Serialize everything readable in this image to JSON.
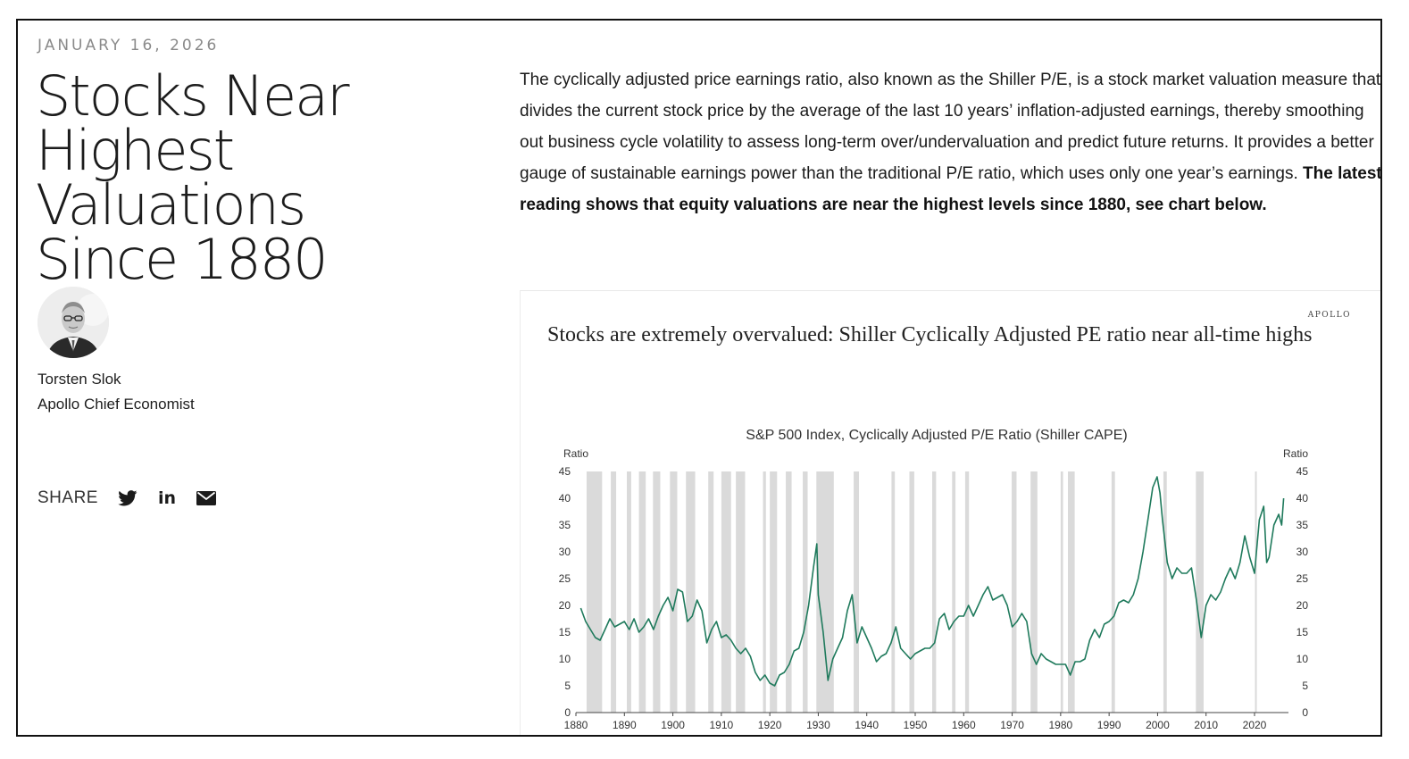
{
  "article": {
    "date": "JANUARY 16, 2026",
    "title_lines": [
      "Stocks Near",
      "Highest Valuations",
      "Since 1880"
    ],
    "author": {
      "name": "Torsten Slok",
      "role": "Apollo Chief Economist"
    },
    "share": {
      "label": "SHARE",
      "icons": [
        "twitter-icon",
        "linkedin-icon",
        "email-icon"
      ],
      "linkedin_glyph": "in"
    },
    "body_plain": "The cyclically adjusted price earnings ratio, also known as the Shiller P/E, is a stock market valuation measure that divides the current stock price by the average of the last 10 years’ inflation-adjusted earnings, thereby smoothing out business cycle volatility to assess long-term over/undervaluation and predict future returns. It provides a better gauge of sustainable earnings power than the traditional P/E ratio, which uses only one year’s earnings. ",
    "body_bold": "The latest reading shows that equity valuations are near the highest levels since 1880, see chart below."
  },
  "chart_card": {
    "brand": "APOLLO",
    "headline": "Stocks are extremely overvalued: Shiller Cyclically Adjusted PE ratio near all-time highs"
  },
  "chart_data": {
    "type": "line",
    "title": "S&P 500 Index, Cyclically Adjusted P/E Ratio (Shiller CAPE)",
    "ylabel_left": "Ratio",
    "ylabel_right": "Ratio",
    "xlim": [
      1880,
      2027
    ],
    "ylim": [
      0,
      45
    ],
    "x_ticks": [
      1880,
      1890,
      1900,
      1910,
      1920,
      1930,
      1940,
      1950,
      1960,
      1970,
      1980,
      1990,
      2000,
      2010,
      2020
    ],
    "y_ticks": [
      0,
      5,
      10,
      15,
      20,
      25,
      30,
      35,
      40,
      45
    ],
    "line_color": "#1f7a5c",
    "recession_color": "#dadada",
    "recessions": [
      [
        1882.2,
        1885.4
      ],
      [
        1887.2,
        1888.3
      ],
      [
        1890.5,
        1891.4
      ],
      [
        1893.0,
        1894.4
      ],
      [
        1895.9,
        1897.4
      ],
      [
        1899.4,
        1900.9
      ],
      [
        1902.7,
        1904.6
      ],
      [
        1907.3,
        1908.4
      ],
      [
        1910.0,
        1912.0
      ],
      [
        1913.0,
        1914.9
      ],
      [
        1918.6,
        1919.2
      ],
      [
        1920.0,
        1921.5
      ],
      [
        1923.3,
        1924.5
      ],
      [
        1926.8,
        1927.8
      ],
      [
        1929.6,
        1933.2
      ],
      [
        1937.3,
        1938.4
      ],
      [
        1945.1,
        1945.8
      ],
      [
        1948.8,
        1949.8
      ],
      [
        1953.5,
        1954.3
      ],
      [
        1957.6,
        1958.3
      ],
      [
        1960.3,
        1961.1
      ],
      [
        1969.9,
        1970.9
      ],
      [
        1973.8,
        1975.2
      ],
      [
        1980.0,
        1980.5
      ],
      [
        1981.5,
        1982.9
      ],
      [
        1990.5,
        1991.2
      ],
      [
        2001.2,
        2001.9
      ],
      [
        2007.9,
        2009.5
      ],
      [
        2020.1,
        2020.4
      ]
    ],
    "series": [
      {
        "points": [
          [
            1881,
            19.5
          ],
          [
            1882,
            17
          ],
          [
            1883,
            15.5
          ],
          [
            1884,
            14
          ],
          [
            1885,
            13.5
          ],
          [
            1886,
            15.5
          ],
          [
            1887,
            17.5
          ],
          [
            1888,
            16
          ],
          [
            1889,
            16.5
          ],
          [
            1890,
            17
          ],
          [
            1891,
            15.5
          ],
          [
            1892,
            17.5
          ],
          [
            1893,
            15
          ],
          [
            1894,
            16
          ],
          [
            1895,
            17.5
          ],
          [
            1896,
            15.5
          ],
          [
            1897,
            18
          ],
          [
            1898,
            20
          ],
          [
            1899,
            21.5
          ],
          [
            1900,
            19
          ],
          [
            1901,
            23
          ],
          [
            1902,
            22.5
          ],
          [
            1903,
            17
          ],
          [
            1904,
            18
          ],
          [
            1905,
            21
          ],
          [
            1906,
            19
          ],
          [
            1907,
            13
          ],
          [
            1908,
            15.5
          ],
          [
            1909,
            17
          ],
          [
            1910,
            14
          ],
          [
            1911,
            14.5
          ],
          [
            1912,
            13.5
          ],
          [
            1913,
            12
          ],
          [
            1914,
            11
          ],
          [
            1915,
            12
          ],
          [
            1916,
            10.5
          ],
          [
            1917,
            7.5
          ],
          [
            1918,
            6
          ],
          [
            1919,
            7
          ],
          [
            1920,
            5.5
          ],
          [
            1921,
            5
          ],
          [
            1922,
            7
          ],
          [
            1923,
            7.5
          ],
          [
            1924,
            9
          ],
          [
            1925,
            11.5
          ],
          [
            1926,
            12
          ],
          [
            1927,
            15
          ],
          [
            1928,
            20
          ],
          [
            1929,
            27
          ],
          [
            1929.7,
            31.5
          ],
          [
            1930,
            22
          ],
          [
            1931,
            15
          ],
          [
            1932,
            6
          ],
          [
            1933,
            10
          ],
          [
            1934,
            12
          ],
          [
            1935,
            14
          ],
          [
            1936,
            19
          ],
          [
            1937,
            22
          ],
          [
            1938,
            13
          ],
          [
            1939,
            16
          ],
          [
            1940,
            14
          ],
          [
            1941,
            12
          ],
          [
            1942,
            9.5
          ],
          [
            1943,
            10.5
          ],
          [
            1944,
            11
          ],
          [
            1945,
            13
          ],
          [
            1946,
            16
          ],
          [
            1947,
            12
          ],
          [
            1948,
            11
          ],
          [
            1949,
            10
          ],
          [
            1950,
            11
          ],
          [
            1951,
            11.5
          ],
          [
            1952,
            12
          ],
          [
            1953,
            12
          ],
          [
            1954,
            13
          ],
          [
            1955,
            17.5
          ],
          [
            1956,
            18.5
          ],
          [
            1957,
            15.5
          ],
          [
            1958,
            17
          ],
          [
            1959,
            18
          ],
          [
            1960,
            18
          ],
          [
            1961,
            20
          ],
          [
            1962,
            18
          ],
          [
            1963,
            20
          ],
          [
            1964,
            22
          ],
          [
            1965,
            23.5
          ],
          [
            1966,
            21
          ],
          [
            1967,
            21.5
          ],
          [
            1968,
            22
          ],
          [
            1969,
            20
          ],
          [
            1970,
            16
          ],
          [
            1971,
            17
          ],
          [
            1972,
            18.5
          ],
          [
            1973,
            17
          ],
          [
            1974,
            11
          ],
          [
            1975,
            9
          ],
          [
            1976,
            11
          ],
          [
            1977,
            10
          ],
          [
            1978,
            9.5
          ],
          [
            1979,
            9
          ],
          [
            1980,
            9
          ],
          [
            1981,
            9
          ],
          [
            1982,
            7
          ],
          [
            1983,
            9.5
          ],
          [
            1984,
            9.5
          ],
          [
            1985,
            10
          ],
          [
            1986,
            13.5
          ],
          [
            1987,
            15.5
          ],
          [
            1988,
            14
          ],
          [
            1989,
            16.5
          ],
          [
            1990,
            17
          ],
          [
            1991,
            18
          ],
          [
            1992,
            20.5
          ],
          [
            1993,
            21
          ],
          [
            1994,
            20.5
          ],
          [
            1995,
            22
          ],
          [
            1996,
            25
          ],
          [
            1997,
            30
          ],
          [
            1998,
            36
          ],
          [
            1999,
            42
          ],
          [
            1999.9,
            44
          ],
          [
            2000.5,
            41
          ],
          [
            2001,
            36
          ],
          [
            2002,
            28
          ],
          [
            2003,
            25
          ],
          [
            2004,
            27
          ],
          [
            2005,
            26
          ],
          [
            2006,
            26
          ],
          [
            2007,
            27
          ],
          [
            2008,
            21
          ],
          [
            2009,
            14
          ],
          [
            2010,
            20
          ],
          [
            2011,
            22
          ],
          [
            2012,
            21
          ],
          [
            2013,
            22.5
          ],
          [
            2014,
            25
          ],
          [
            2015,
            27
          ],
          [
            2016,
            25
          ],
          [
            2017,
            28
          ],
          [
            2018,
            33
          ],
          [
            2019,
            29
          ],
          [
            2020,
            26
          ],
          [
            2021,
            36
          ],
          [
            2021.9,
            38.5
          ],
          [
            2022.5,
            28
          ],
          [
            2023,
            29
          ],
          [
            2024,
            35
          ],
          [
            2025,
            37
          ],
          [
            2025.6,
            35
          ],
          [
            2026,
            40
          ]
        ]
      }
    ]
  }
}
